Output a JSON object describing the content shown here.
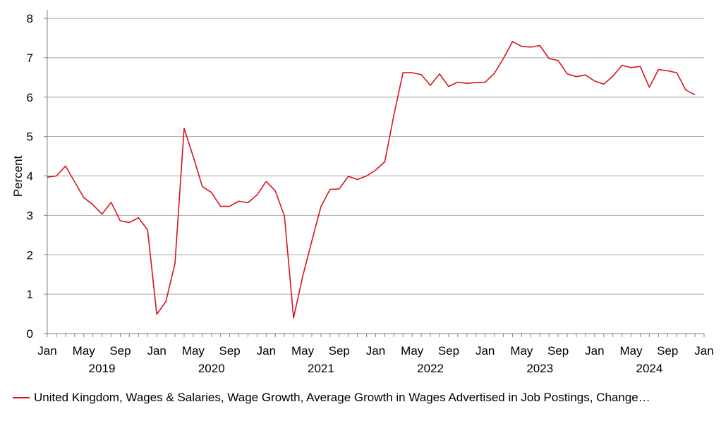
{
  "chart_data": {
    "type": "line",
    "title": "",
    "ylabel": "Percent",
    "xlabel": "",
    "ylim": [
      0,
      8
    ],
    "yticks": [
      "0",
      "1",
      "2",
      "3",
      "4",
      "5",
      "6",
      "7",
      "8"
    ],
    "xlim": [
      "2019-01",
      "2025-01"
    ],
    "month_ticks": [
      "Jan",
      "May",
      "Sep",
      "Jan",
      "May",
      "Sep",
      "Jan",
      "May",
      "Sep",
      "Jan",
      "May",
      "Sep",
      "Jan",
      "May",
      "Sep",
      "Jan",
      "May",
      "Sep",
      "Jan"
    ],
    "year_labels": [
      "2019",
      "2020",
      "2021",
      "2022",
      "2023",
      "2024"
    ],
    "grid": true,
    "legend_position": "bottom",
    "colors": {
      "series": "#d8141d",
      "grid": "#a6a6a6",
      "axis": "#808080"
    },
    "series": [
      {
        "name": "United Kingdom, Wages & Salaries, Wage Growth, Average Growth in Wages Advertised in Job Postings, Change…",
        "x": [
          "2019-01",
          "2019-02",
          "2019-03",
          "2019-04",
          "2019-05",
          "2019-06",
          "2019-07",
          "2019-08",
          "2019-09",
          "2019-10",
          "2019-11",
          "2019-12",
          "2020-01",
          "2020-02",
          "2020-03",
          "2020-04",
          "2020-05",
          "2020-06",
          "2020-07",
          "2020-08",
          "2020-09",
          "2020-10",
          "2020-11",
          "2020-12",
          "2021-01",
          "2021-02",
          "2021-03",
          "2021-04",
          "2021-05",
          "2021-06",
          "2021-07",
          "2021-08",
          "2021-09",
          "2021-10",
          "2021-11",
          "2021-12",
          "2022-01",
          "2022-02",
          "2022-03",
          "2022-04",
          "2022-05",
          "2022-06",
          "2022-07",
          "2022-08",
          "2022-09",
          "2022-10",
          "2022-11",
          "2022-12",
          "2023-01",
          "2023-02",
          "2023-03",
          "2023-04",
          "2023-05",
          "2023-06",
          "2023-07",
          "2023-08",
          "2023-09",
          "2023-10",
          "2023-11",
          "2023-12",
          "2024-01",
          "2024-02",
          "2024-03",
          "2024-04",
          "2024-05",
          "2024-06",
          "2024-07",
          "2024-08",
          "2024-09",
          "2024-10",
          "2024-11",
          "2024-12"
        ],
        "values": [
          3.97,
          4.0,
          4.25,
          3.85,
          3.45,
          3.27,
          3.03,
          3.33,
          2.86,
          2.82,
          2.94,
          2.63,
          0.49,
          0.81,
          1.78,
          5.21,
          4.49,
          3.73,
          3.58,
          3.23,
          3.23,
          3.36,
          3.32,
          3.52,
          3.86,
          3.62,
          2.98,
          0.4,
          1.45,
          2.35,
          3.22,
          3.66,
          3.67,
          3.99,
          3.91,
          4.0,
          4.15,
          4.36,
          5.55,
          6.62,
          6.62,
          6.57,
          6.3,
          6.59,
          6.27,
          6.38,
          6.35,
          6.37,
          6.38,
          6.6,
          6.98,
          7.41,
          7.29,
          7.27,
          7.31,
          6.98,
          6.93,
          6.59,
          6.52,
          6.56,
          6.41,
          6.33,
          6.53,
          6.81,
          6.75,
          6.78,
          6.25,
          6.7,
          6.67,
          6.62,
          6.18,
          6.06
        ]
      }
    ]
  }
}
